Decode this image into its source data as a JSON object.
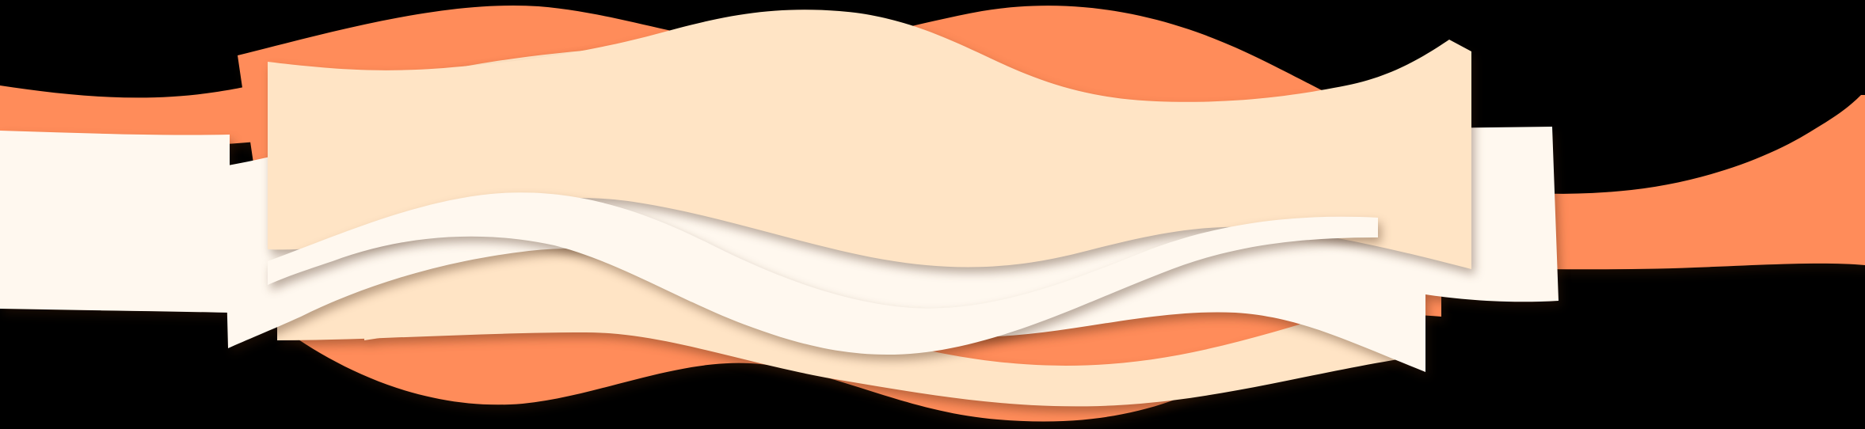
{
  "banner": {
    "label": "",
    "colors": {
      "background": "#000000",
      "orange": "#ff8c5a",
      "peach": "#ffe4c5",
      "light_peach": "#ffeed8",
      "cream": "#fff8ef",
      "shadow": "#3c1e0a"
    },
    "layers": [
      "back-orange-ribbon",
      "mid-peach-ribbon",
      "cream-ribbon",
      "front-peach-panel",
      "front-cream-wave"
    ]
  }
}
